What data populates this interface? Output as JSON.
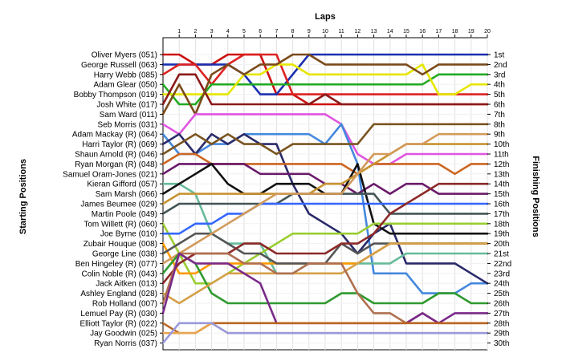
{
  "chart_data": {
    "type": "line",
    "top_axis_title": "Laps",
    "left_axis_title": "Starting Positions",
    "right_axis_title": "Finishing Positions",
    "laps": [
      1,
      2,
      3,
      4,
      5,
      6,
      7,
      8,
      9,
      10,
      11,
      12,
      13,
      14,
      15,
      16,
      17,
      18,
      19,
      20
    ],
    "x_range": [
      0,
      20
    ],
    "y_range": [
      1,
      30
    ],
    "grid": true,
    "drivers": [
      "Oliver Myers (051)",
      "George Russell (063)",
      "Harry Webb (085)",
      "Adam Glear (050)",
      "Bobby Thompson (019)",
      "Josh White (017)",
      "Sam Ward (011)",
      "Seb Morris (031)",
      "Adam Mackay  (R) (064)",
      "Harri Taylor (R) (069)",
      "Shaun Arnold (R) (046)",
      "Ryan Morgan (R) (048)",
      "Samuel Oram-Jones (021)",
      "Kieran Gifford (057)",
      "Sam Marsh (066)",
      "James Beumee (029)",
      "Martin Poole (049)",
      "Tom Willett (R) (060)",
      "Joe Byrne (010)",
      "Zubair Houque (008)",
      "George Line (038)",
      "Ben Hingeley (R) (077)",
      "Colin Noble (R) (043)",
      "Jack Aitken (013)",
      "Ashley England (028)",
      "Rob Holland (007)",
      "Lemuel Pay (R) (030)",
      "Elliott Taylor (R) (022)",
      "Jay Goodwin (025)",
      "Ryan Norris (037)"
    ],
    "finishing_labels": [
      "1st",
      "2nd",
      "3rd",
      "4th",
      "5th",
      "6th",
      "7th",
      "8th",
      "9th",
      "10th",
      "11th",
      "12th",
      "13th",
      "14th",
      "15th",
      "16th",
      "17th",
      "18th",
      "19th",
      "20th",
      "21st",
      "22nd",
      "23rd",
      "24th",
      "25th",
      "26th",
      "27th",
      "28th",
      "29th",
      "30th"
    ],
    "series": [
      {
        "color": "#cc1111",
        "positions": [
          1,
          1,
          2,
          2,
          1,
          1,
          1,
          5,
          5,
          6,
          6,
          6,
          6,
          6,
          6,
          6,
          6,
          6,
          6,
          6,
          6
        ]
      },
      {
        "color": "#1a2fb0",
        "positions": [
          2,
          2,
          2,
          2,
          2,
          3,
          5,
          5,
          3,
          1,
          1,
          1,
          1,
          1,
          1,
          1,
          1,
          1,
          1,
          1,
          1
        ]
      },
      {
        "color": "#dd2222",
        "positions": [
          3,
          2,
          2,
          4,
          2,
          1,
          1,
          1,
          5,
          5,
          5,
          5,
          5,
          5,
          5,
          5,
          5,
          5,
          5,
          5,
          5
        ]
      },
      {
        "color": "#22aa22",
        "positions": [
          4,
          6,
          6,
          4,
          4,
          4,
          4,
          4,
          4,
          4,
          4,
          4,
          4,
          4,
          4,
          4,
          4,
          3,
          3,
          3,
          3
        ]
      },
      {
        "color": "#e6e600",
        "positions": [
          5,
          5,
          5,
          5,
          5,
          3,
          3,
          2,
          2,
          3,
          3,
          3,
          3,
          3,
          3,
          3,
          2,
          5,
          5,
          4,
          4
        ]
      },
      {
        "color": "#8b1a1a",
        "positions": [
          6,
          3,
          3,
          6,
          6,
          6,
          6,
          6,
          6,
          6,
          5,
          6,
          6,
          6,
          6,
          6,
          6,
          6,
          6,
          6,
          6
        ]
      },
      {
        "color": "#7b4a1a",
        "positions": [
          7,
          4,
          7,
          3,
          2,
          3,
          2,
          2,
          1,
          1,
          2,
          2,
          2,
          2,
          2,
          2,
          3,
          2,
          2,
          2,
          2
        ]
      },
      {
        "color": "#e055e0",
        "positions": [
          8,
          9,
          7,
          7,
          7,
          7,
          7,
          7,
          7,
          7,
          7,
          8,
          11,
          12,
          12,
          11,
          11,
          11,
          11,
          11,
          11
        ]
      },
      {
        "color": "#4488dd",
        "positions": [
          9,
          11,
          11,
          10,
          10,
          9,
          9,
          9,
          9,
          9,
          10,
          8,
          12,
          23,
          23,
          23,
          25,
          25,
          25,
          24,
          24
        ]
      },
      {
        "color": "#2a2a6a",
        "positions": [
          10,
          9,
          11,
          9,
          10,
          9,
          10,
          10,
          14,
          17,
          18,
          19,
          21,
          19,
          18,
          22,
          22,
          22,
          22,
          23,
          24
        ]
      },
      {
        "color": "#7a5520",
        "positions": [
          11,
          10,
          9,
          10,
          9,
          10,
          10,
          11,
          10,
          10,
          10,
          10,
          10,
          8,
          8,
          8,
          8,
          8,
          8,
          8,
          8
        ]
      },
      {
        "color": "#cc6622",
        "positions": [
          12,
          11,
          11,
          12,
          12,
          12,
          12,
          12,
          12,
          12,
          12,
          12,
          13,
          12,
          12,
          12,
          12,
          12,
          13,
          12,
          12
        ]
      },
      {
        "color": "#6a1a6a",
        "positions": [
          13,
          12,
          12,
          12,
          12,
          12,
          13,
          13,
          13,
          13,
          14,
          14,
          15,
          14,
          15,
          14,
          14,
          15,
          15,
          15,
          15
        ]
      },
      {
        "color": "#66bb99",
        "positions": [
          14,
          14,
          15,
          19,
          20,
          20,
          20,
          23,
          23,
          22,
          22,
          22,
          22,
          22,
          22,
          21,
          21,
          21,
          21,
          21,
          21
        ]
      },
      {
        "color": "#111111",
        "positions": [
          15,
          14,
          13,
          12,
          14,
          15,
          15,
          14,
          14,
          14,
          15,
          15,
          12,
          18,
          19,
          19,
          19,
          19,
          19,
          19,
          19
        ]
      },
      {
        "color": "#c89432",
        "positions": [
          16,
          15,
          15,
          15,
          15,
          15,
          15,
          15,
          15,
          15,
          14,
          14,
          13,
          12,
          11,
          10,
          10,
          10,
          10,
          10,
          10
        ]
      },
      {
        "color": "#445555",
        "positions": [
          17,
          16,
          16,
          16,
          16,
          16,
          16,
          16,
          15,
          15,
          15,
          15,
          15,
          15,
          17,
          17,
          17,
          17,
          17,
          17,
          17
        ]
      },
      {
        "color": "#9acd32",
        "positions": [
          18,
          21,
          24,
          24,
          23,
          22,
          21,
          20,
          19,
          19,
          19,
          19,
          19,
          18,
          18,
          18,
          18,
          18,
          18,
          18,
          18
        ]
      },
      {
        "color": "#3366ff",
        "positions": [
          19,
          19,
          18,
          18,
          17,
          17,
          16,
          16,
          16,
          16,
          16,
          16,
          16,
          16,
          16,
          16,
          16,
          16,
          16,
          16,
          16
        ]
      },
      {
        "color": "#ff9900",
        "positions": [
          20,
          23,
          23,
          22,
          22,
          22,
          22,
          22,
          22,
          22,
          22,
          22,
          22,
          21,
          20,
          20,
          20,
          20,
          20,
          20,
          20
        ]
      },
      {
        "color": "#555555",
        "positions": [
          21,
          20,
          19,
          19,
          20,
          21,
          21,
          22,
          22,
          22,
          22,
          20,
          21,
          20,
          20,
          20,
          20,
          20,
          20,
          20,
          20
        ]
      },
      {
        "color": "#d29a5a",
        "positions": [
          22,
          21,
          20,
          19,
          18,
          17,
          16,
          15,
          15,
          15,
          15,
          15,
          13,
          11,
          11,
          10,
          10,
          9,
          9,
          9,
          9
        ]
      },
      {
        "color": "#2f9a2f",
        "positions": [
          23,
          21,
          22,
          25,
          26,
          26,
          26,
          26,
          26,
          26,
          26,
          25,
          25,
          26,
          26,
          26,
          26,
          25,
          25,
          26,
          26
        ]
      },
      {
        "color": "#8c2a2a",
        "positions": [
          24,
          22,
          21,
          21,
          21,
          20,
          20,
          21,
          21,
          21,
          21,
          20,
          20,
          19,
          17,
          16,
          15,
          14,
          14,
          14,
          14
        ]
      },
      {
        "color": "#d4a04a",
        "positions": [
          25,
          26,
          25,
          24,
          23,
          23,
          23,
          23,
          23,
          23,
          23,
          23,
          22,
          21,
          20,
          20,
          20,
          20,
          20,
          20,
          20
        ]
      },
      {
        "color": "#b07050",
        "positions": [
          26,
          21,
          21,
          21,
          21,
          22,
          22,
          23,
          23,
          22,
          22,
          22,
          25,
          27,
          27,
          28,
          27,
          28,
          28,
          28,
          28
        ]
      },
      {
        "color": "#7a2a8a",
        "positions": [
          27,
          21,
          22,
          22,
          22,
          23,
          24,
          28,
          28,
          28,
          28,
          28,
          28,
          28,
          28,
          28,
          27,
          28,
          27,
          27,
          27
        ]
      },
      {
        "color": "#bb6622",
        "positions": [
          28,
          29,
          29,
          28,
          28,
          28,
          28,
          28,
          28,
          28,
          28,
          28,
          28,
          28,
          28,
          28,
          28,
          28,
          28,
          28,
          28
        ]
      },
      {
        "color": "#e8a550",
        "positions": [
          29,
          29,
          29,
          28,
          29,
          29,
          29,
          29,
          29,
          29,
          29,
          29,
          29,
          29,
          29,
          29,
          29,
          29,
          29,
          29,
          29
        ]
      },
      {
        "color": "#9999dd",
        "positions": [
          30,
          28,
          28,
          28,
          29,
          29,
          29,
          29,
          29,
          29,
          29,
          29,
          29,
          29,
          29,
          29,
          29,
          29,
          29,
          29,
          29
        ]
      }
    ]
  }
}
